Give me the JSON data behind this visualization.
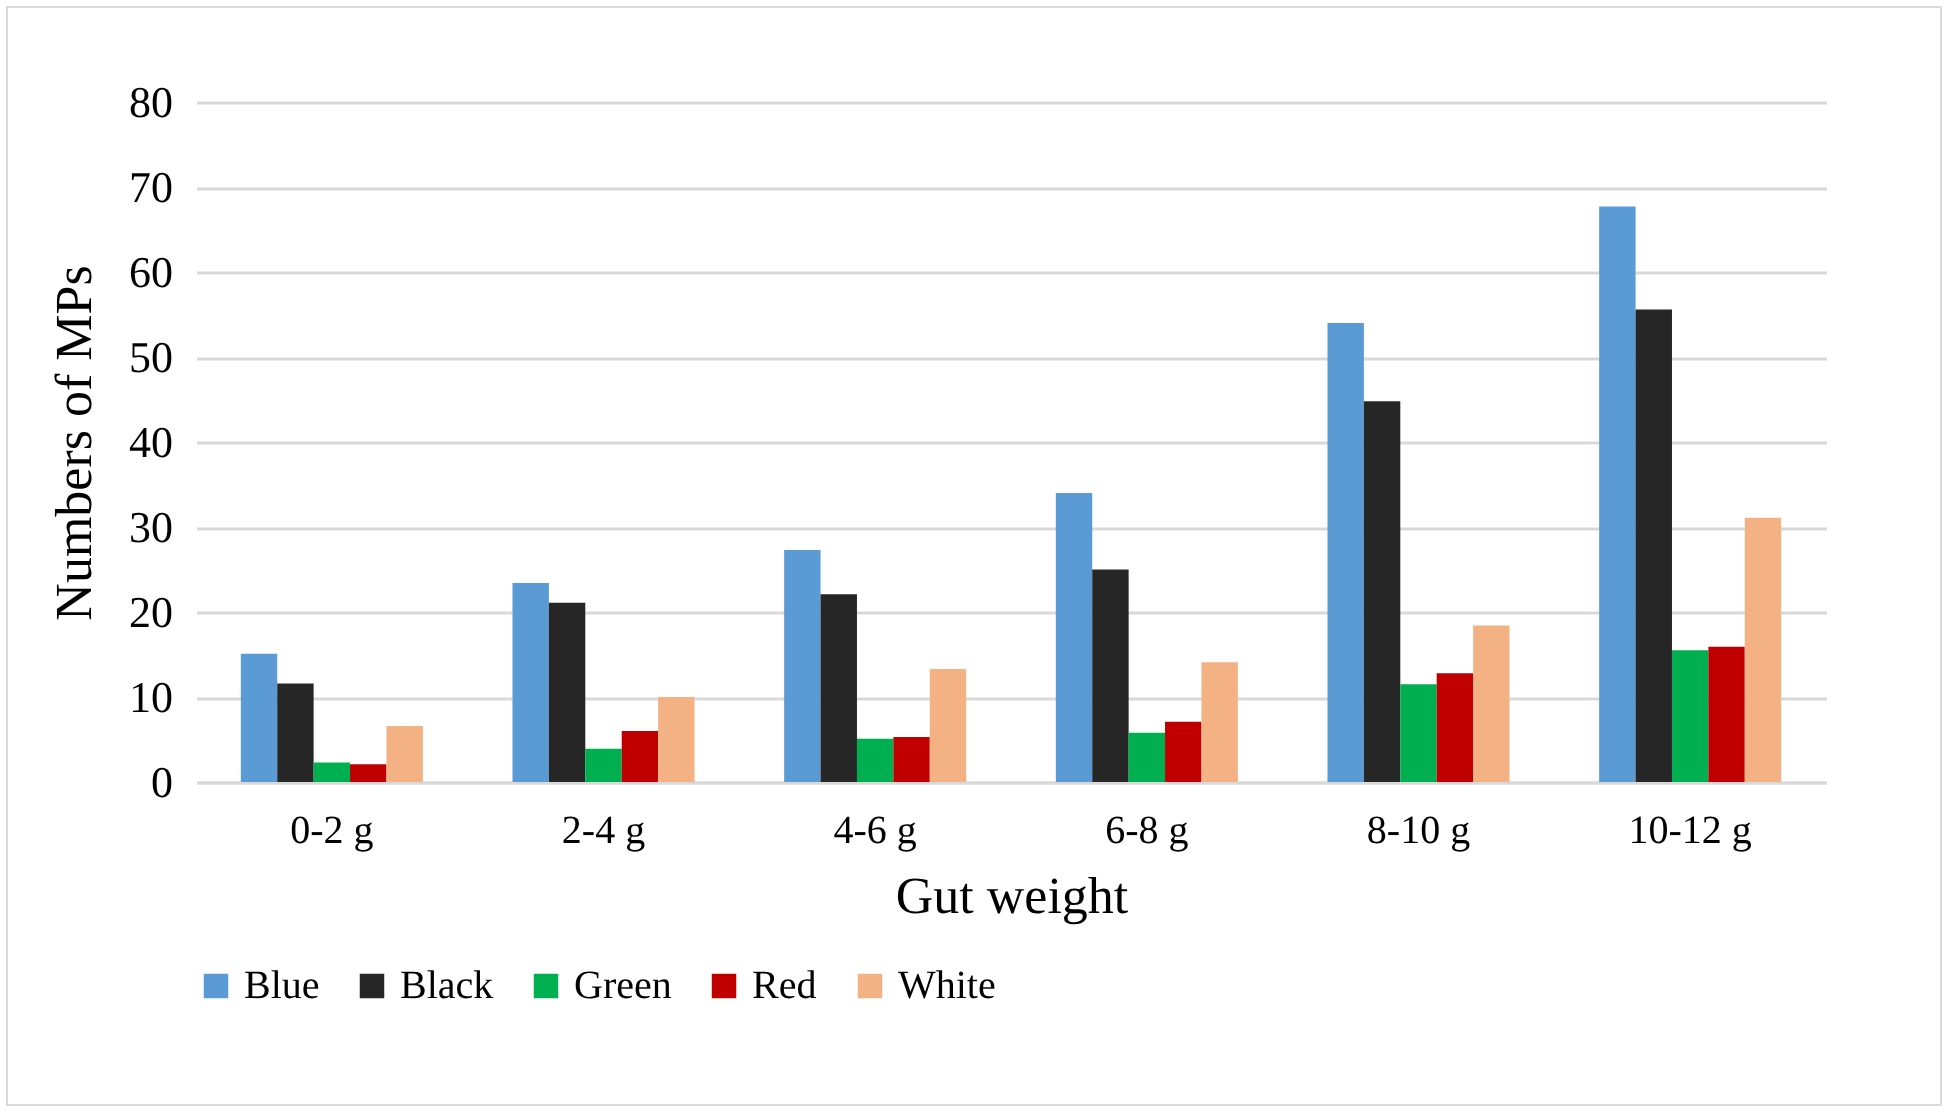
{
  "chart_data": {
    "type": "bar",
    "xlabel": "Gut weight",
    "ylabel": "Numbers of MPs",
    "categories": [
      "0-2 g",
      "2-4 g",
      "4-6 g",
      "6-8 g",
      "8-10 g",
      "10-12 g"
    ],
    "series": [
      {
        "name": "Blue",
        "color": "#5b9bd5",
        "values": [
          15.1,
          23.4,
          27.3,
          34.0,
          54.0,
          67.7
        ]
      },
      {
        "name": "Black",
        "color": "#262626",
        "values": [
          11.6,
          21.1,
          22.1,
          25.0,
          44.8,
          55.6
        ]
      },
      {
        "name": "Green",
        "color": "#00b050",
        "values": [
          2.3,
          3.9,
          5.1,
          5.8,
          11.5,
          15.5
        ]
      },
      {
        "name": "Red",
        "color": "#c00000",
        "values": [
          2.1,
          6.0,
          5.3,
          7.1,
          12.8,
          15.9
        ]
      },
      {
        "name": "White",
        "color": "#f4b183",
        "values": [
          6.6,
          10.0,
          13.3,
          14.1,
          18.4,
          31.1
        ]
      }
    ],
    "ylim": [
      0,
      80
    ],
    "yticks": [
      0,
      10,
      20,
      30,
      40,
      50,
      60,
      70,
      80
    ],
    "grid": "y",
    "legend": "bottom"
  }
}
